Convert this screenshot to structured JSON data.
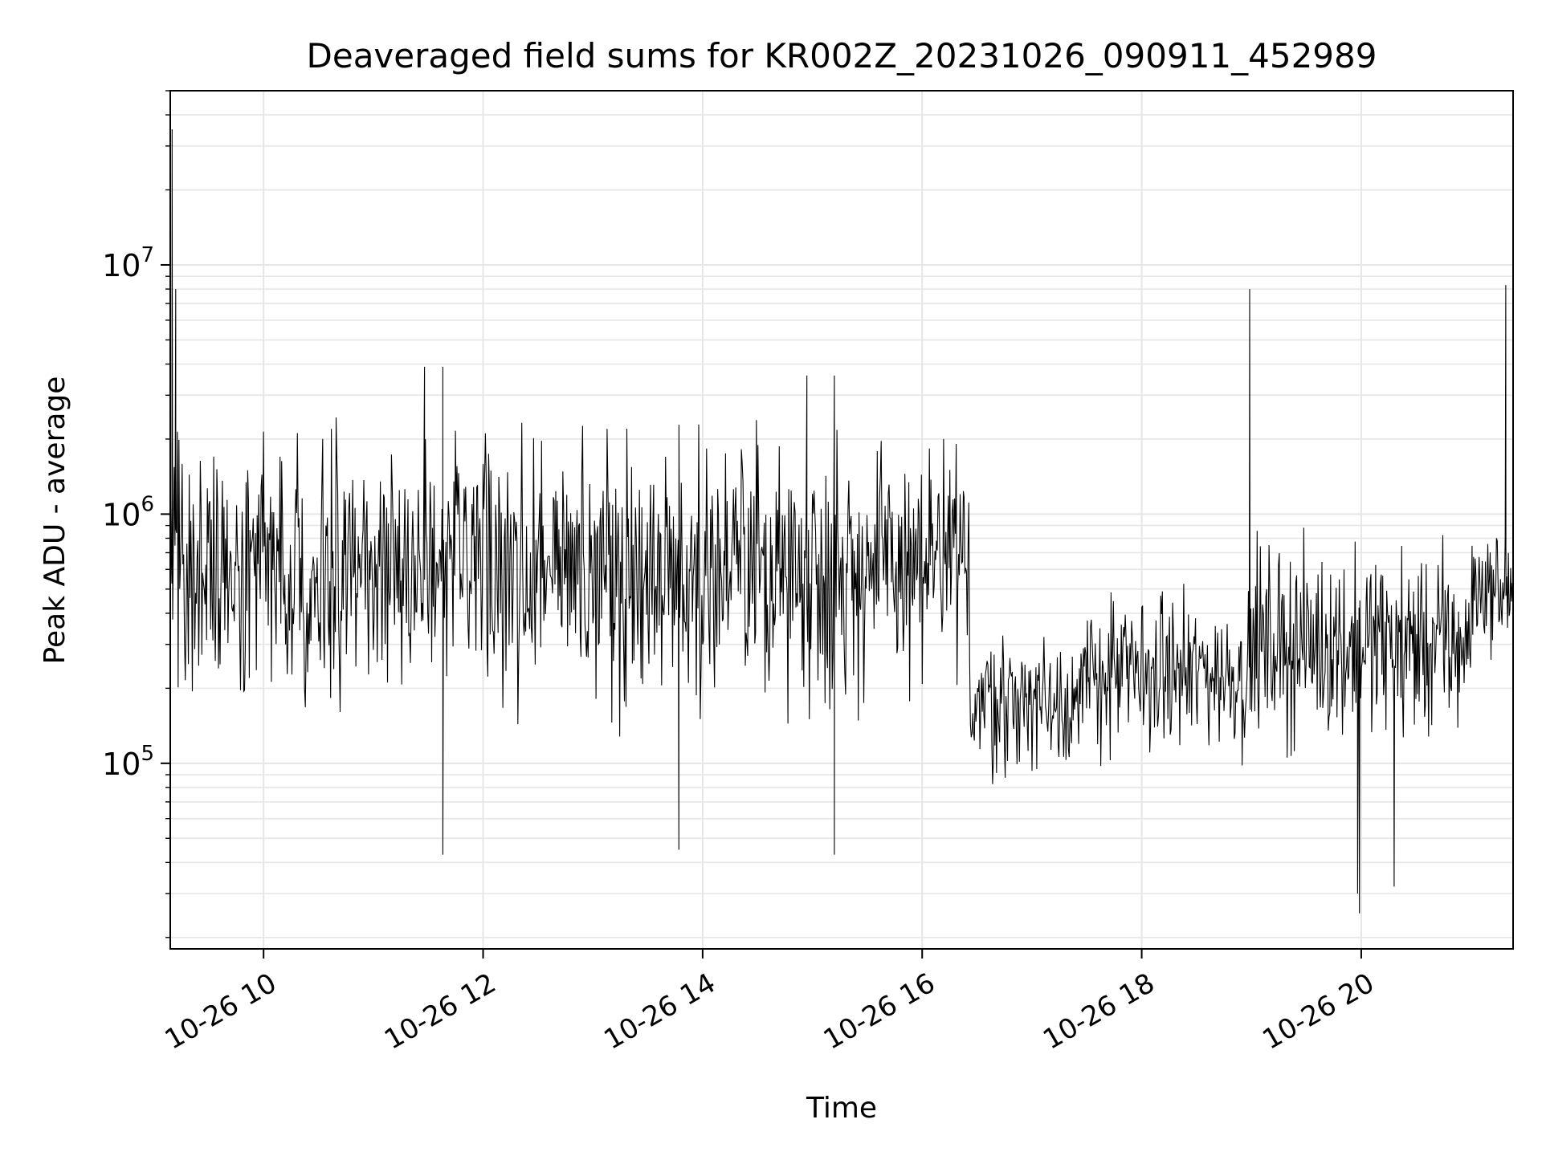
{
  "chart_data": {
    "type": "line",
    "title": "Deaveraged field sums for KR002Z_20231026_090911_452989",
    "xlabel": "Time",
    "ylabel": "Peak ADU - average",
    "x_type": "datetime",
    "xlim": [
      "2023-10-26 09:09",
      "2023-10-26 21:23"
    ],
    "x_ticks": [
      {
        "label": "10-26 10",
        "value": "2023-10-26 10:00"
      },
      {
        "label": "10-26 12",
        "value": "2023-10-26 12:00"
      },
      {
        "label": "10-26 14",
        "value": "2023-10-26 14:00"
      },
      {
        "label": "10-26 16",
        "value": "2023-10-26 16:00"
      },
      {
        "label": "10-26 18",
        "value": "2023-10-26 18:00"
      },
      {
        "label": "10-26 20",
        "value": "2023-10-26 20:00"
      }
    ],
    "y_scale": "log",
    "ylim": [
      18000,
      50000000
    ],
    "y_ticks": [
      {
        "label_base": "10",
        "label_exp": "5",
        "value": 100000
      },
      {
        "label_base": "10",
        "label_exp": "6",
        "value": 1000000
      },
      {
        "label_base": "10",
        "label_exp": "7",
        "value": 10000000
      }
    ],
    "grid": true,
    "line_color": "#000000",
    "grid_color": "#e6e6e6",
    "series": [
      {
        "sample_interval": "every ~2.4 minutes",
        "segments": [
          {
            "start": "2023-10-26 09:09",
            "end": "2023-10-26 16:26",
            "median": 600000,
            "spread_low": 120000,
            "spread_high": 2500000
          },
          {
            "start": "2023-10-26 16:26",
            "end": "2023-10-26 17:30",
            "median": 180000,
            "spread_low": 80000,
            "spread_high": 450000
          },
          {
            "start": "2023-10-26 17:30",
            "end": "2023-10-26 19:00",
            "median": 230000,
            "spread_low": 80000,
            "spread_high": 500000
          },
          {
            "start": "2023-10-26 19:00",
            "end": "2023-10-26 21:00",
            "median": 300000,
            "spread_low": 70000,
            "spread_high": 700000
          },
          {
            "start": "2023-10-26 21:00",
            "end": "2023-10-26 21:23",
            "median": 500000,
            "spread_low": 300000,
            "spread_high": 1200000
          }
        ],
        "spikes": [
          {
            "x": "2023-10-26 09:10",
            "y": 35000000
          },
          {
            "x": "2023-10-26 09:12",
            "y": 8000000
          },
          {
            "x": "2023-10-26 11:28",
            "y": 3900000
          },
          {
            "x": "2023-10-26 11:38",
            "y": 3900000
          },
          {
            "x": "2023-10-26 14:57",
            "y": 3600000
          },
          {
            "x": "2023-10-26 15:12",
            "y": 3600000
          },
          {
            "x": "2023-10-26 18:59",
            "y": 8000000
          },
          {
            "x": "2023-10-26 21:19",
            "y": 8300000
          }
        ],
        "dips": [
          {
            "x": "2023-10-26 11:38",
            "y": 43000
          },
          {
            "x": "2023-10-26 13:47",
            "y": 45000
          },
          {
            "x": "2023-10-26 15:12",
            "y": 43000
          },
          {
            "x": "2023-10-26 19:58",
            "y": 30000
          },
          {
            "x": "2023-10-26 19:59",
            "y": 25000
          },
          {
            "x": "2023-10-26 20:18",
            "y": 32000
          }
        ]
      }
    ]
  }
}
